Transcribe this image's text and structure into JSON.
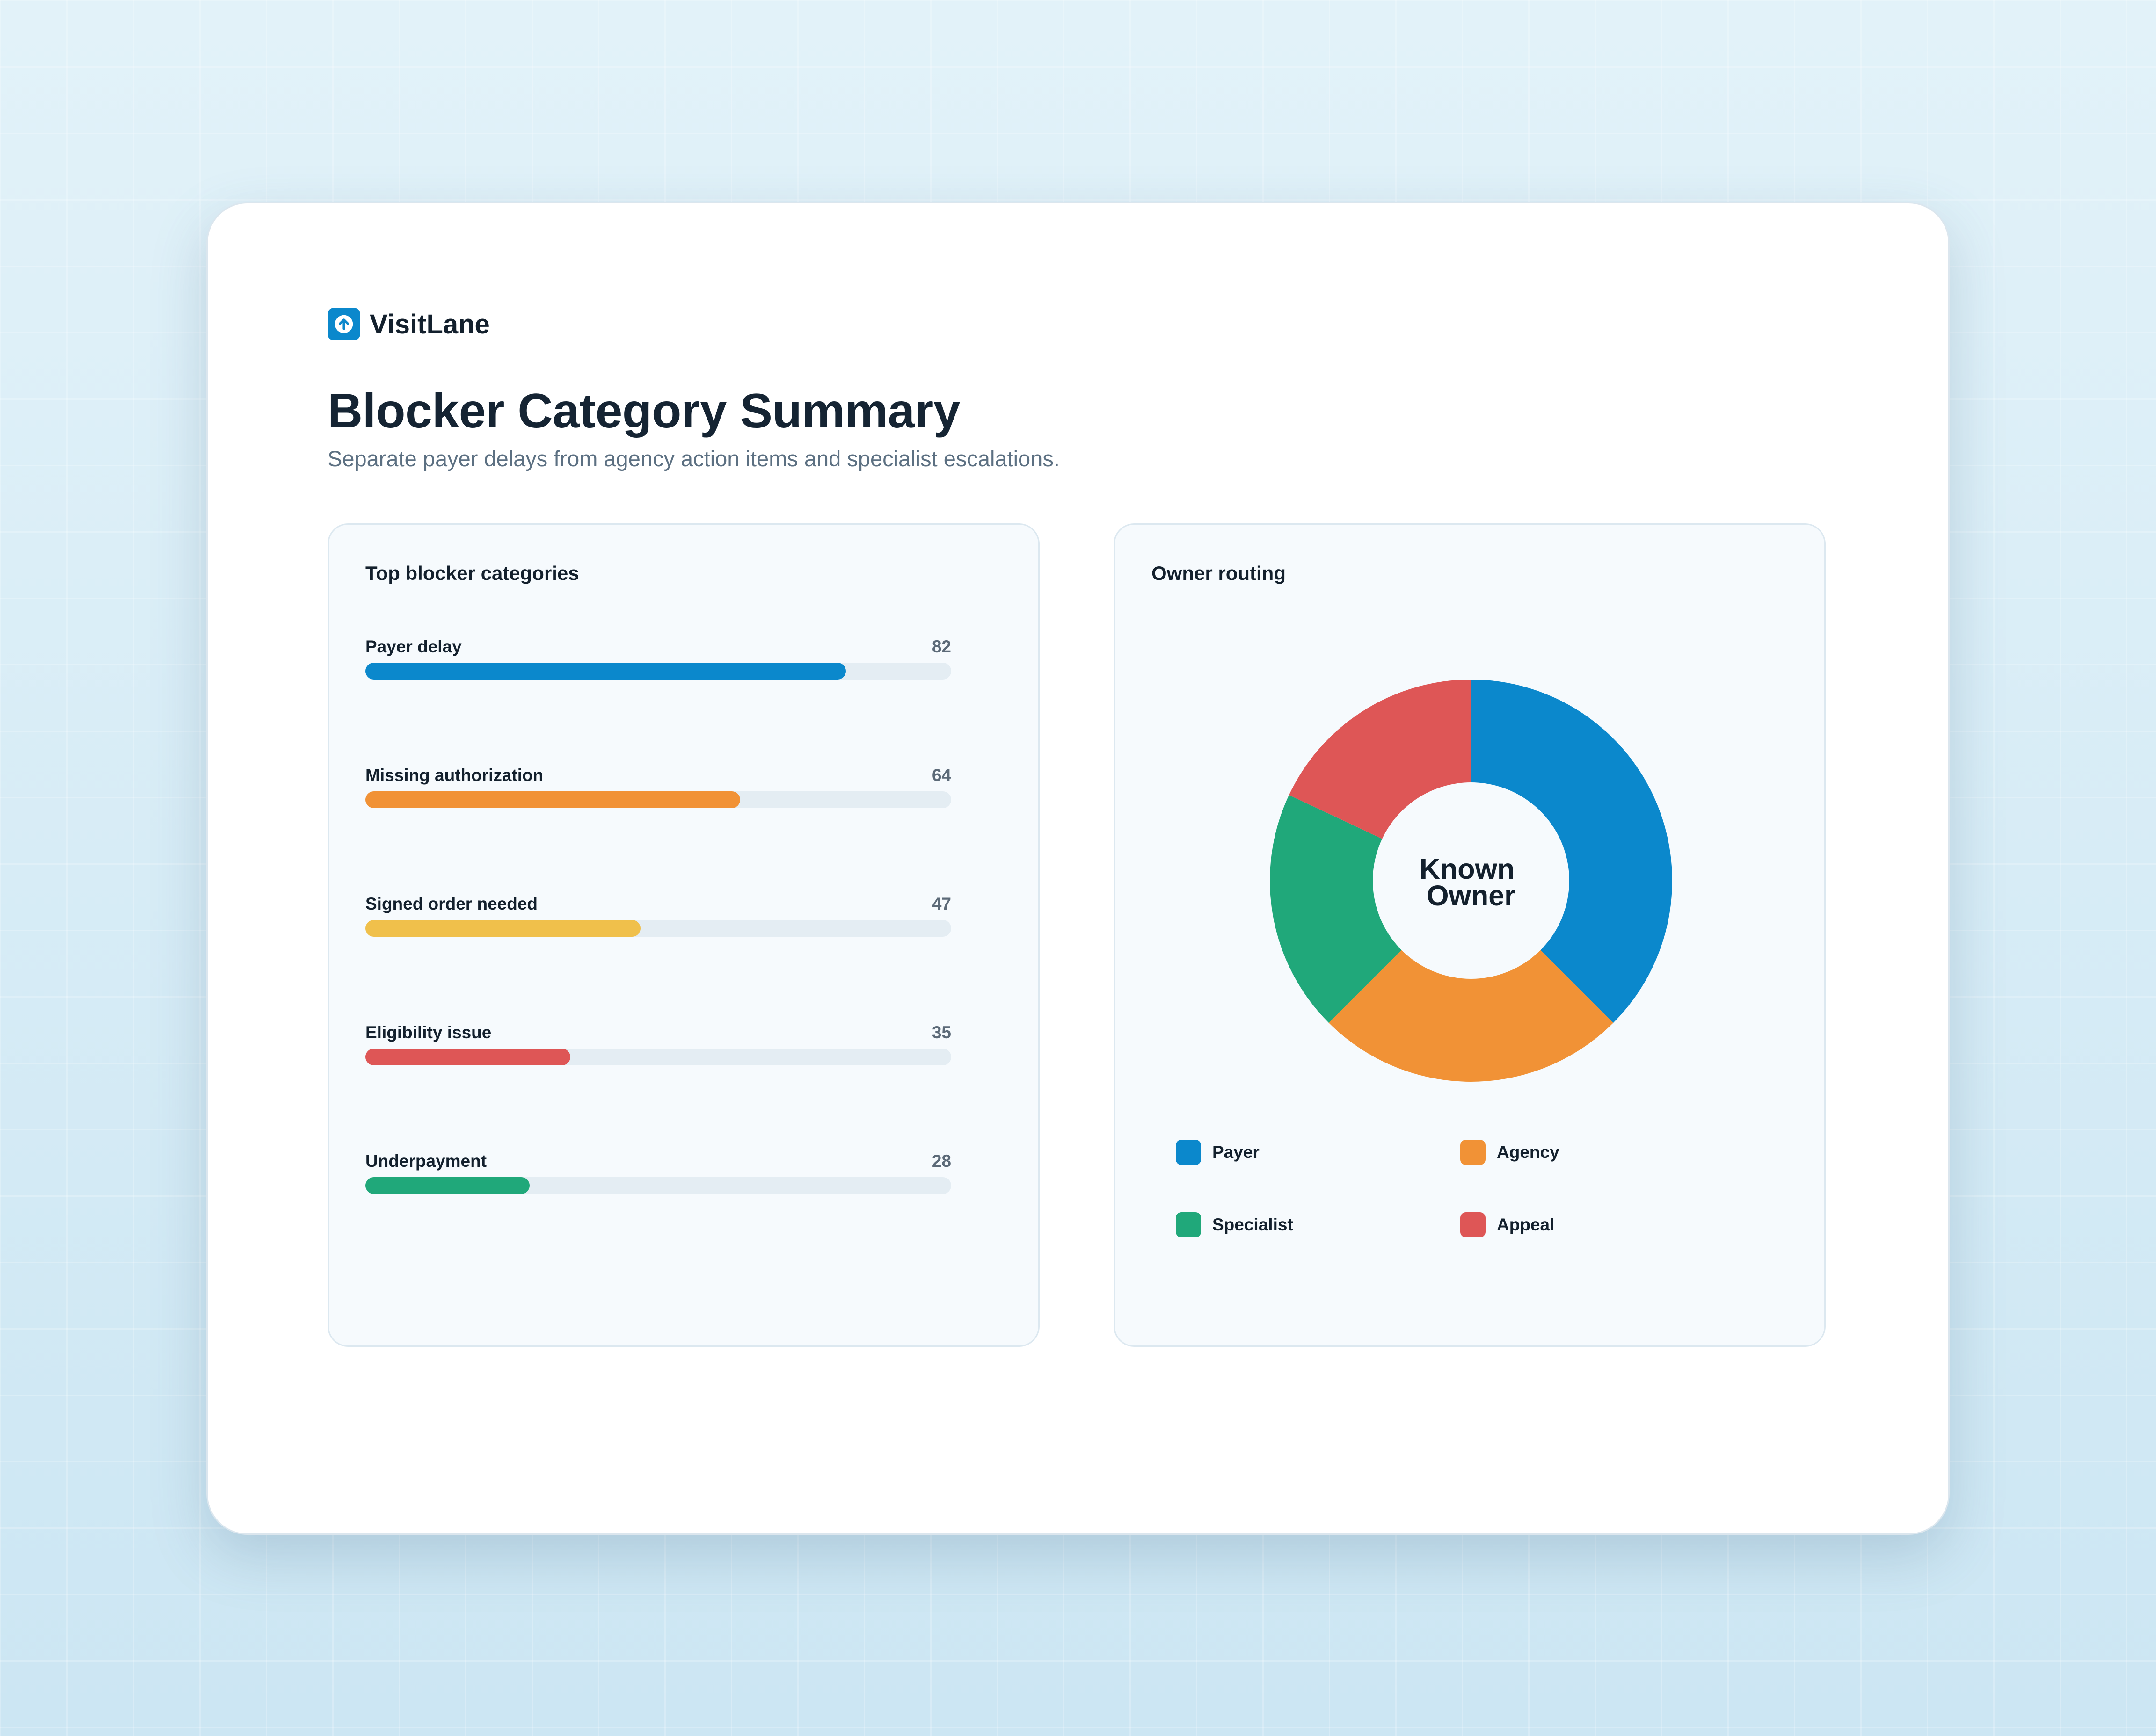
{
  "brand": {
    "name": "VisitLane",
    "logo_icon": "arrow-up-icon",
    "accent": "#0b88cc"
  },
  "page": {
    "title": "Blocker Category Summary",
    "subtitle": "Separate payer delays from agency action items and specialist escalations."
  },
  "categories_panel": {
    "title": "Top blocker categories",
    "scale_max": 100,
    "items": [
      {
        "label": "Payer delay",
        "value": 82,
        "color": "#0b88cc"
      },
      {
        "label": "Missing authorization",
        "value": 64,
        "color": "#f19236"
      },
      {
        "label": "Signed order needed",
        "value": 47,
        "color": "#f0c04b"
      },
      {
        "label": "Eligibility issue",
        "value": 35,
        "color": "#de5656"
      },
      {
        "label": "Underpayment",
        "value": 28,
        "color": "#20a87a"
      }
    ]
  },
  "routing_panel": {
    "title": "Owner routing",
    "center_label": [
      "Known",
      "Owner"
    ],
    "legend": [
      {
        "label": "Payer",
        "color": "#0b88cc"
      },
      {
        "label": "Agency",
        "color": "#f19236"
      },
      {
        "label": "Specialist",
        "color": "#20a87a"
      },
      {
        "label": "Appeal",
        "color": "#de5656"
      }
    ]
  },
  "chart_data": [
    {
      "type": "bar",
      "title": "Top blocker categories",
      "categories": [
        "Payer delay",
        "Missing authorization",
        "Signed order needed",
        "Eligibility issue",
        "Underpayment"
      ],
      "values": [
        82,
        64,
        47,
        35,
        28
      ],
      "xlim": [
        0,
        100
      ]
    },
    {
      "type": "pie",
      "title": "Owner routing",
      "categories": [
        "Payer",
        "Agency",
        "Specialist",
        "Appeal"
      ],
      "values": [
        37.5,
        25,
        19.5,
        18
      ],
      "colors": [
        "#0b88cc",
        "#f19236",
        "#20a87a",
        "#de5656"
      ],
      "legend": "bottom"
    }
  ]
}
